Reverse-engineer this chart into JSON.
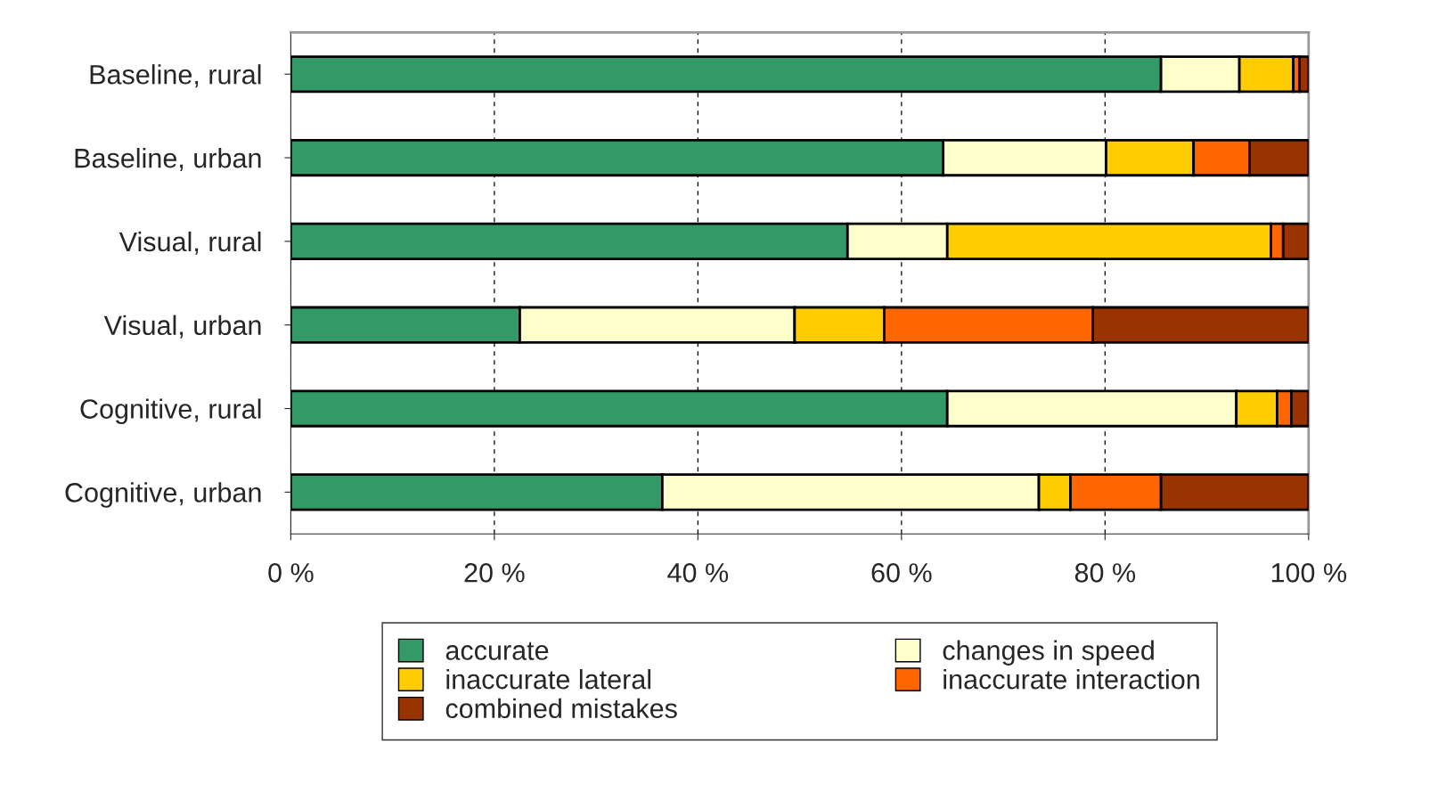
{
  "chart_data": {
    "type": "bar",
    "orientation": "horizontal",
    "stacked": true,
    "categories": [
      "Baseline, rural",
      "Baseline, urban",
      "Visual, rural",
      "Visual, urban",
      "Cognitive, rural",
      "Cognitive, urban"
    ],
    "series": [
      {
        "name": "accurate",
        "color": "#339966",
        "values": [
          85.5,
          64.1,
          54.7,
          22.5,
          64.5,
          36.5
        ]
      },
      {
        "name": "changes in speed",
        "color": "#ffffcc",
        "values": [
          7.7,
          16.0,
          9.8,
          27.0,
          28.4,
          37.0
        ]
      },
      {
        "name": "inaccurate lateral",
        "color": "#ffcc00",
        "values": [
          5.3,
          8.6,
          31.8,
          8.8,
          4.0,
          3.1
        ]
      },
      {
        "name": "inaccurate interaction",
        "color": "#ff6600",
        "values": [
          0.6,
          5.5,
          1.2,
          20.5,
          1.4,
          8.9
        ]
      },
      {
        "name": "combined mistakes",
        "color": "#993300",
        "values": [
          0.9,
          5.8,
          2.5,
          21.2,
          1.7,
          14.5
        ]
      }
    ],
    "xlim": [
      0,
      100
    ],
    "xticks": [
      {
        "value": 0,
        "label": "0 %"
      },
      {
        "value": 20,
        "label": "20 %"
      },
      {
        "value": 40,
        "label": "40 %"
      },
      {
        "value": 60,
        "label": "60 %"
      },
      {
        "value": 80,
        "label": "80 %"
      },
      {
        "value": 100,
        "label": "100 %"
      }
    ],
    "grid": "x",
    "legend": "bottom"
  }
}
